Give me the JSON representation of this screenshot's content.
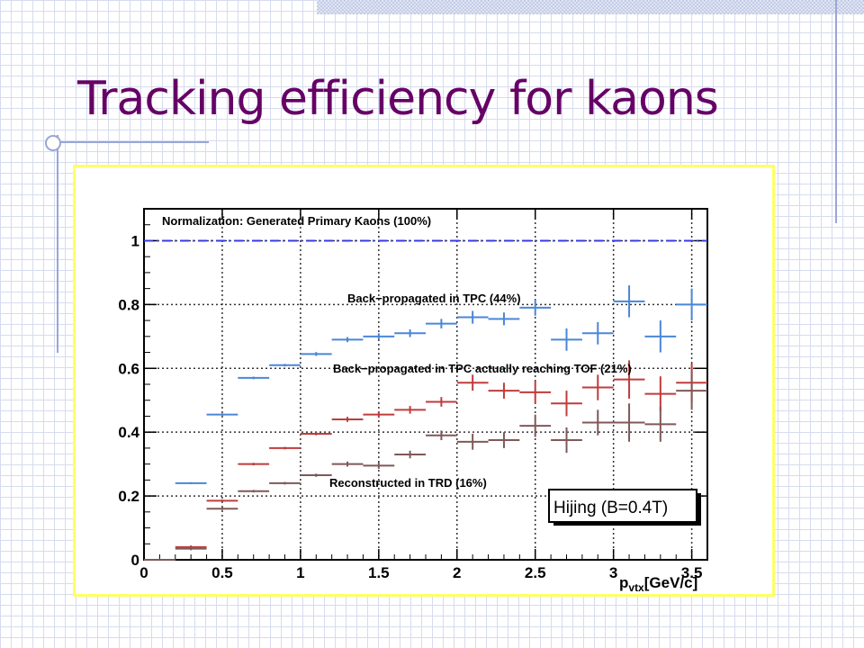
{
  "slide": {
    "title": "Tracking efficiency for kaons"
  },
  "chart_data": {
    "type": "scatter",
    "xlabel": "p_vtx[GeV/c]",
    "xlabel_main": "p",
    "xlabel_sub": "vtx",
    "xlabel_unit": "[GeV/c]",
    "ylabel": "",
    "xlim": [
      0,
      3.6
    ],
    "ylim": [
      0,
      1.1
    ],
    "x_ticks": [
      "0",
      "0.5",
      "1",
      "1.5",
      "2",
      "2.5",
      "3",
      "3.5"
    ],
    "x_tick_values": [
      0,
      0.5,
      1,
      1.5,
      2,
      2.5,
      3,
      3.5
    ],
    "y_ticks": [
      "0",
      "0.2",
      "0.4",
      "0.6",
      "0.8",
      "1"
    ],
    "y_tick_values": [
      0,
      0.2,
      0.4,
      0.6,
      0.8,
      1
    ],
    "grid": true,
    "annotations": {
      "normalization": "Normalization: Generated Primary Kaons (100%)",
      "tpc": "Back−propagated in TPC (44%)",
      "tof": "Back−propagated in TPC actually reaching TOF (21%)",
      "trd": "Reconstructed in TRD (16%)",
      "box": "Hijing (B=0.4T)"
    },
    "colors": {
      "normalization": "#3a3ae0",
      "tpc": "#4a86d8",
      "tof": "#c03c3c",
      "trd": "#805858",
      "grid": "#333333",
      "frame": "#ffff66"
    },
    "normalization_value": 1.0,
    "series": [
      {
        "key": "tpc",
        "x": [
          0.1,
          0.3,
          0.5,
          0.7,
          0.9,
          1.1,
          1.3,
          1.5,
          1.7,
          1.9,
          2.1,
          2.3,
          2.5,
          2.7,
          2.9,
          3.1,
          3.3,
          3.5
        ],
        "y": [
          0.0,
          0.24,
          0.455,
          0.57,
          0.61,
          0.645,
          0.69,
          0.7,
          0.71,
          0.74,
          0.76,
          0.755,
          0.79,
          0.69,
          0.71,
          0.81,
          0.7,
          0.8
        ],
        "yerr": [
          0,
          0.003,
          0.004,
          0.004,
          0.004,
          0.006,
          0.008,
          0.01,
          0.012,
          0.015,
          0.02,
          0.02,
          0.025,
          0.035,
          0.035,
          0.05,
          0.05,
          0.05
        ]
      },
      {
        "key": "tof",
        "x": [
          0.1,
          0.3,
          0.5,
          0.7,
          0.9,
          1.1,
          1.3,
          1.5,
          1.7,
          1.9,
          2.1,
          2.3,
          2.5,
          2.7,
          2.9,
          3.1,
          3.3,
          3.5
        ],
        "y": [
          0.0,
          0.04,
          0.185,
          0.3,
          0.35,
          0.395,
          0.44,
          0.455,
          0.47,
          0.495,
          0.555,
          0.53,
          0.525,
          0.49,
          0.54,
          0.565,
          0.52,
          0.555
        ],
        "yerr": [
          0,
          0.005,
          0.004,
          0.004,
          0.004,
          0.005,
          0.008,
          0.01,
          0.012,
          0.015,
          0.025,
          0.025,
          0.035,
          0.04,
          0.04,
          0.06,
          0.055,
          0.06
        ]
      },
      {
        "key": "trd",
        "x": [
          0.1,
          0.3,
          0.5,
          0.7,
          0.9,
          1.1,
          1.3,
          1.5,
          1.7,
          1.9,
          2.1,
          2.3,
          2.5,
          2.7,
          2.9,
          3.1,
          3.3,
          3.5
        ],
        "y": [
          0.0,
          0.035,
          0.16,
          0.215,
          0.24,
          0.265,
          0.3,
          0.295,
          0.33,
          0.39,
          0.37,
          0.375,
          0.42,
          0.375,
          0.43,
          0.43,
          0.425,
          0.53
        ],
        "yerr": [
          0,
          0.005,
          0.004,
          0.004,
          0.004,
          0.005,
          0.008,
          0.01,
          0.012,
          0.015,
          0.025,
          0.025,
          0.035,
          0.04,
          0.04,
          0.06,
          0.055,
          0.06
        ]
      }
    ]
  }
}
